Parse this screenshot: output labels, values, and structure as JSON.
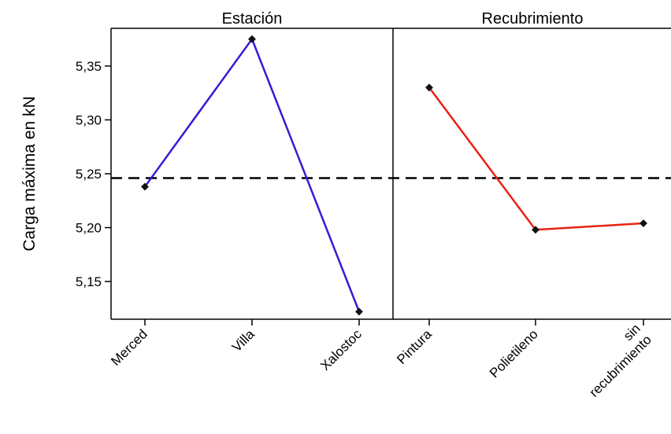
{
  "chart_data": {
    "type": "line",
    "ylabel": "Carga máxima en kN",
    "yticks": [
      "5,15",
      "5,20",
      "5,25",
      "5,30",
      "5,35"
    ],
    "ytick_values": [
      5.15,
      5.2,
      5.25,
      5.3,
      5.35
    ],
    "ylim": [
      5.115,
      5.385
    ],
    "reference_line": 5.246,
    "grid": false,
    "panels": [
      {
        "title": "Estación",
        "categories": [
          "Merced",
          "Villa",
          "Xalostoc"
        ],
        "values": [
          5.238,
          5.375,
          5.122
        ],
        "color": "#3a18d6"
      },
      {
        "title": "Recubrimiento",
        "categories": [
          "Pintura",
          "Polietileno",
          "sin recubrimiento"
        ],
        "values": [
          5.33,
          5.198,
          5.204
        ],
        "color": "#e8220e"
      }
    ]
  }
}
